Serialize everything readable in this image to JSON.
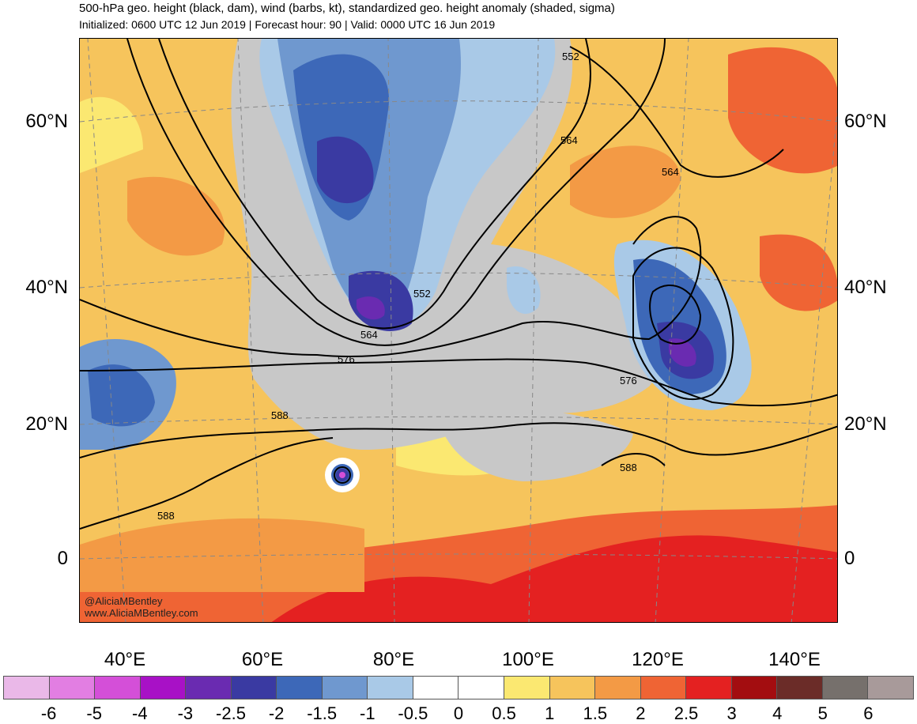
{
  "title": "500-hPa geo. height (black, dam), wind (barbs, kt), standardized geo. height anomaly (shaded, sigma)",
  "subtitle": "Initialized: 0600 UTC 12 Jun 2019 | Forecast hour: 90 | Valid: 0000 UTC 16 Jun 2019",
  "credit": [
    "@AliciaMBentley",
    "www.AliciaMBentley.com"
  ],
  "lat_labels": [
    "60°N",
    "40°N",
    "20°N",
    "0"
  ],
  "lon_labels": [
    "40°E",
    "60°E",
    "80°E",
    "100°E",
    "120°E",
    "140°E"
  ],
  "contour_labels": [
    "552",
    "564",
    "564",
    "552",
    "564",
    "576",
    "576",
    "588",
    "588",
    "588"
  ],
  "colorbar": {
    "ticks": [
      "-6",
      "-5",
      "-4",
      "-3",
      "-2.5",
      "-2",
      "-1.5",
      "-1",
      "-0.5",
      "0",
      "0.5",
      "1",
      "1.5",
      "2",
      "2.5",
      "3",
      "4",
      "5",
      "6"
    ],
    "colors": [
      "#eab8e8",
      "#e27ee2",
      "#d44fd8",
      "#a811c6",
      "#6a2bb1",
      "#3a3aa2",
      "#3d68b8",
      "#6f98cf",
      "#a9c9e7",
      "#ffffff",
      "#ffffff",
      "#fbe871",
      "#f6c45c",
      "#f39a45",
      "#ef6434",
      "#e42121",
      "#a30d10",
      "#6b2c28",
      "#76706c",
      "#a89a9a"
    ]
  }
}
